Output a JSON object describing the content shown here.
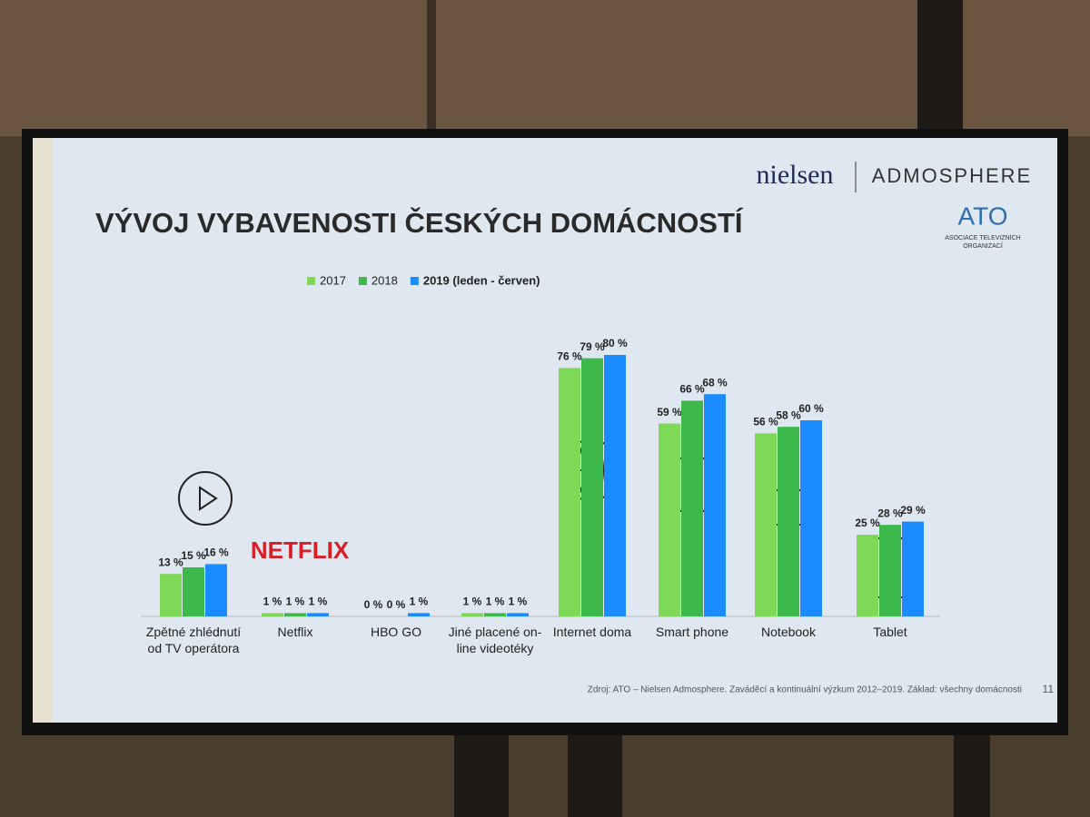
{
  "chart_data": {
    "type": "bar",
    "title": "VÝVOJ VYBAVENOSTI ČESKÝCH DOMÁCNOSTÍ",
    "categories": [
      "Zpětné zhlédnutí od TV operátora",
      "Netflix",
      "HBO GO",
      "Jiné placené on-line videotéky",
      "Internet doma",
      "Smart phone",
      "Notebook",
      "Tablet"
    ],
    "series": [
      {
        "name": "2017",
        "color": "#7ed957",
        "values": [
          13,
          1,
          0,
          1,
          76,
          59,
          56,
          25
        ],
        "value_labels": [
          "13 %",
          "1 %",
          "0 %",
          "1 %",
          "76 %",
          "59 %",
          "56 %",
          "25 %"
        ]
      },
      {
        "name": "2018",
        "color": "#3cb94a",
        "values": [
          15,
          1,
          0,
          1,
          79,
          66,
          58,
          28
        ],
        "value_labels": [
          "15 %",
          "1 %",
          "0 %",
          "1 %",
          "79 %",
          "66 %",
          "58 %",
          "28 %"
        ]
      },
      {
        "name": "2019 (leden - červen)",
        "color": "#1a8cff",
        "values": [
          16,
          1,
          1,
          1,
          80,
          68,
          60,
          29
        ],
        "value_labels": [
          "16 %",
          "1 %",
          "1 %",
          "1 %",
          "80 %",
          "68 %",
          "60 %",
          "29 %"
        ]
      }
    ],
    "legend_position": "top"
  },
  "slide": {
    "logo_nielsen": "nielsen",
    "logo_admosphere": "ADMOSPHERE",
    "logo_ato": "ATO",
    "ato_subtitle": "ASOCIACE TELEVIZNÍCH ORGANIZACÍ",
    "netflix_logo": "NETFLIX",
    "source": "Zdroj: ATO – Nielsen Admosphere. Zaváděcí a kontinuální výzkum 2012–2019. Základ: všechny domácnosti",
    "page_number": "11"
  }
}
